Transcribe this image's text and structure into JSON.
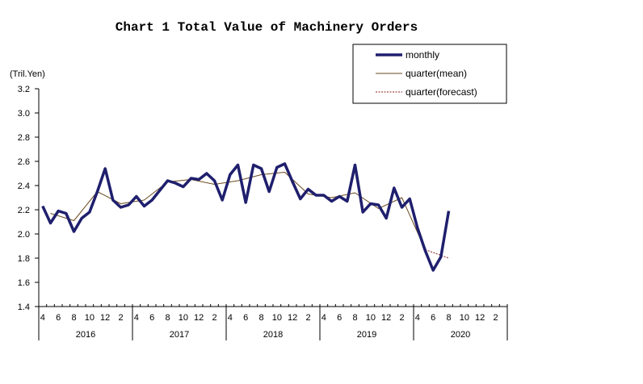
{
  "chart_data": {
    "type": "line",
    "title": "Chart 1 Total Value of Machinery Orders",
    "unit_label": "(Tril.Yen)",
    "ylim": [
      1.4,
      3.2
    ],
    "y_ticks": [
      "1.4",
      "1.6",
      "1.8",
      "2.0",
      "2.2",
      "2.4",
      "2.6",
      "2.8",
      "3.0",
      "3.2"
    ],
    "x_month_labels": [
      "4",
      "6",
      "8",
      "10",
      "12",
      "2",
      "4",
      "6",
      "8",
      "10",
      "12",
      "2",
      "4",
      "6",
      "8",
      "10",
      "12",
      "2",
      "4",
      "6",
      "8",
      "10",
      "12",
      "2",
      "4",
      "6",
      "8",
      "10",
      "12",
      "2"
    ],
    "x_year_labels": [
      "2016",
      "2017",
      "2018",
      "2019",
      "2020"
    ],
    "legend": {
      "placement": "top-right"
    },
    "series": [
      {
        "name": "monthly",
        "color": "#1f1f6e",
        "start": "2016-04",
        "values": [
          2.23,
          2.09,
          2.19,
          2.17,
          2.02,
          2.13,
          2.18,
          2.35,
          2.54,
          2.28,
          2.22,
          2.24,
          2.31,
          2.23,
          2.28,
          2.36,
          2.44,
          2.42,
          2.39,
          2.46,
          2.45,
          2.5,
          2.44,
          2.28,
          2.49,
          2.57,
          2.26,
          2.57,
          2.54,
          2.35,
          2.55,
          2.58,
          2.43,
          2.29,
          2.37,
          2.32,
          2.32,
          2.27,
          2.31,
          2.27,
          2.57,
          2.18,
          2.25,
          2.24,
          2.13,
          2.38,
          2.22,
          2.29,
          2.05,
          1.86,
          1.7,
          1.81,
          2.19
        ]
      },
      {
        "name": "quarter(mean)",
        "color": "#6b4a1e",
        "x_months": [
          "2016-05",
          "2016-08",
          "2016-11",
          "2017-02",
          "2017-05",
          "2017-08",
          "2017-11",
          "2018-02",
          "2018-05",
          "2018-08",
          "2018-11",
          "2019-02",
          "2019-05",
          "2019-08",
          "2019-11",
          "2020-02",
          "2020-05"
        ],
        "values": [
          2.17,
          2.11,
          2.35,
          2.25,
          2.28,
          2.43,
          2.45,
          2.41,
          2.44,
          2.49,
          2.51,
          2.33,
          2.3,
          2.34,
          2.21,
          2.3,
          1.87
        ]
      },
      {
        "name": "quarter(forecast)",
        "color": "#8b1a1a",
        "x_months": [
          "2020-05",
          "2020-08"
        ],
        "values": [
          1.87,
          1.8
        ]
      }
    ]
  }
}
